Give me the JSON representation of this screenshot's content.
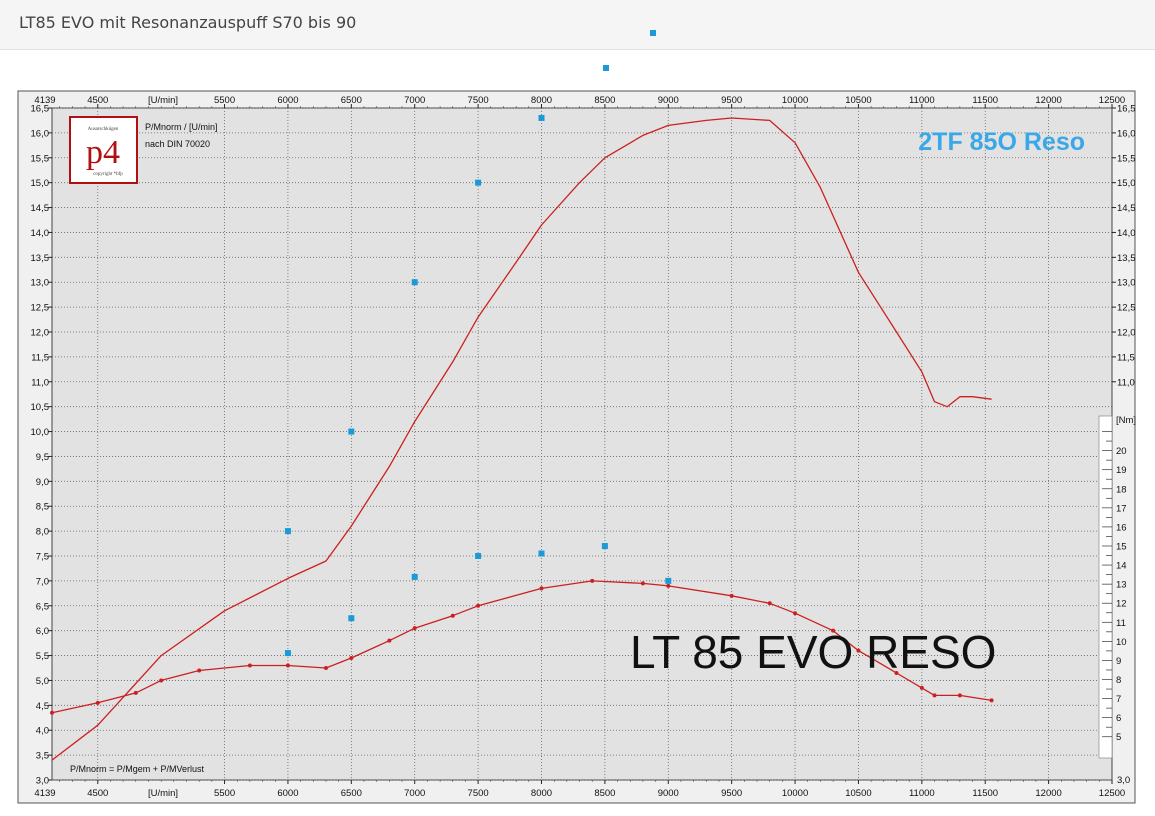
{
  "page": {
    "title": "LT85 EVO mit Resonanzauspuff S70 bis 90"
  },
  "chart_data": {
    "type": "line",
    "x_unit_label": "[U/min]",
    "x_start_label": "4139",
    "x_ticks": [
      4500,
      5500,
      6000,
      6500,
      7000,
      7500,
      8000,
      8500,
      9000,
      9500,
      10000,
      10500,
      11000,
      11500,
      12000,
      12500
    ],
    "xlim": [
      4139,
      12500
    ],
    "left_axis": {
      "ylim": [
        3.0,
        16.5
      ],
      "ticks": [
        "16,5",
        "16,0",
        "15,5",
        "15,0",
        "14,5",
        "14,0",
        "13,5",
        "13,0",
        "12,5",
        "12,0",
        "11,5",
        "11,0",
        "10,5",
        "10,0",
        "9,5",
        "9,0",
        "8,5",
        "8,0",
        "7,5",
        "7,0",
        "6,5",
        "6,0",
        "5,5",
        "5,0",
        "4,5",
        "4,0",
        "3,5",
        "3,0"
      ]
    },
    "right_axis": {
      "upper_ticks": [
        "16,5",
        "16,0",
        "15,5",
        "15,0",
        "14,5",
        "14,0",
        "13,5",
        "13,0",
        "12,5",
        "12,0",
        "11,5",
        "11,0"
      ],
      "unit": "[Nm]",
      "torque_ticks": [
        "20",
        "19",
        "18",
        "17",
        "16",
        "15",
        "14",
        "13",
        "12",
        "11",
        "10",
        "9",
        "8",
        "7",
        "6",
        "5"
      ],
      "bottom_tick": "3,0",
      "torque_range": [
        4.2,
        21.5
      ]
    },
    "top_left_text": [
      "P/Mnorm / [U/min]",
      "nach DIN 70020"
    ],
    "formula": "P/Mnorm = P/Mgem + P/MVerlust",
    "logo": {
      "mark": "p4",
      "top_text": "Ausarschkügen",
      "bottom_text": "copyright *bfp"
    },
    "annotations": [
      {
        "text": "2TF 85O Reso",
        "color": "#3aa8e8"
      },
      {
        "text": "LT 85 EVO RESO",
        "color": "#111111"
      }
    ],
    "series": [
      {
        "name": "2TF 85O Reso",
        "color": "#cc2020",
        "markers": false,
        "points": [
          [
            4139,
            3.4
          ],
          [
            4500,
            4.1
          ],
          [
            5000,
            5.5
          ],
          [
            5500,
            6.4
          ],
          [
            6000,
            7.05
          ],
          [
            6300,
            7.4
          ],
          [
            6500,
            8.1
          ],
          [
            6800,
            9.3
          ],
          [
            7000,
            10.2
          ],
          [
            7300,
            11.4
          ],
          [
            7500,
            12.3
          ],
          [
            7800,
            13.4
          ],
          [
            8000,
            14.15
          ],
          [
            8300,
            15.0
          ],
          [
            8500,
            15.5
          ],
          [
            8800,
            15.95
          ],
          [
            9000,
            16.15
          ],
          [
            9300,
            16.25
          ],
          [
            9500,
            16.3
          ],
          [
            9800,
            16.25
          ],
          [
            10000,
            15.8
          ],
          [
            10200,
            14.9
          ],
          [
            10500,
            13.2
          ],
          [
            10800,
            12.0
          ],
          [
            11000,
            11.2
          ],
          [
            11100,
            10.6
          ],
          [
            11200,
            10.5
          ],
          [
            11300,
            10.7
          ],
          [
            11400,
            10.7
          ],
          [
            11550,
            10.65
          ]
        ]
      },
      {
        "name": "LT 85 EVO RESO",
        "color": "#cc2020",
        "markers": true,
        "points": [
          [
            4139,
            4.35
          ],
          [
            4500,
            4.55
          ],
          [
            4800,
            4.75
          ],
          [
            5000,
            5.0
          ],
          [
            5300,
            5.2
          ],
          [
            5700,
            5.3
          ],
          [
            6000,
            5.3
          ],
          [
            6300,
            5.25
          ],
          [
            6500,
            5.45
          ],
          [
            6800,
            5.8
          ],
          [
            7000,
            6.05
          ],
          [
            7300,
            6.3
          ],
          [
            7500,
            6.5
          ],
          [
            8000,
            6.85
          ],
          [
            8400,
            7.0
          ],
          [
            8800,
            6.95
          ],
          [
            9000,
            6.9
          ],
          [
            9500,
            6.7
          ],
          [
            9800,
            6.55
          ],
          [
            10000,
            6.35
          ],
          [
            10300,
            6.0
          ],
          [
            10500,
            5.6
          ],
          [
            10800,
            5.15
          ],
          [
            11000,
            4.85
          ],
          [
            11100,
            4.7
          ],
          [
            11300,
            4.7
          ],
          [
            11550,
            4.6
          ]
        ]
      }
    ],
    "scatter_points": [
      [
        6000,
        8.0
      ],
      [
        6000,
        5.55
      ],
      [
        6500,
        10.0
      ],
      [
        6500,
        6.25
      ],
      [
        7000,
        13.0
      ],
      [
        7000,
        7.08
      ],
      [
        7500,
        15.0
      ],
      [
        7500,
        7.5
      ],
      [
        8000,
        16.3
      ],
      [
        8000,
        7.55
      ],
      [
        8500,
        7.7
      ],
      [
        9000,
        7.0
      ]
    ],
    "scatter_color": "#1a9ad8"
  }
}
